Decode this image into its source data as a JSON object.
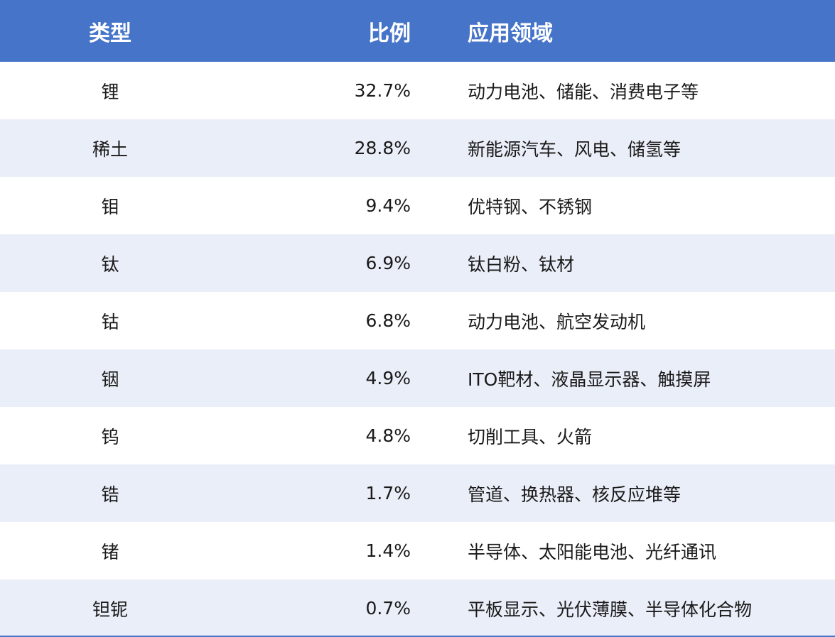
{
  "table": {
    "headers": {
      "type": "类型",
      "ratio": "比例",
      "application": "应用领域"
    },
    "rows": [
      {
        "type": "锂",
        "ratio": "32.7%",
        "application": "动力电池、储能、消费电子等"
      },
      {
        "type": "稀土",
        "ratio": "28.8%",
        "application": "新能源汽车、风电、储氢等"
      },
      {
        "type": "钼",
        "ratio": "9.4%",
        "application": "优特钢、不锈钢"
      },
      {
        "type": "钛",
        "ratio": "6.9%",
        "application": "钛白粉、钛材"
      },
      {
        "type": "钴",
        "ratio": "6.8%",
        "application": "动力电池、航空发动机"
      },
      {
        "type": "铟",
        "ratio": "4.9%",
        "application": "ITO靶材、液晶显示器、触摸屏"
      },
      {
        "type": "钨",
        "ratio": "4.8%",
        "application": "切削工具、火箭"
      },
      {
        "type": "锆",
        "ratio": "1.7%",
        "application": "管道、换热器、核反应堆等"
      },
      {
        "type": "锗",
        "ratio": "1.4%",
        "application": "半导体、太阳能电池、光纤通讯"
      },
      {
        "type": "钽铌",
        "ratio": "0.7%",
        "application": "平板显示、光伏薄膜、半导体化合物"
      }
    ]
  },
  "colors": {
    "header_bg": "#4674c9",
    "stripe_bg": "#eaeef8",
    "header_text": "#ffffff"
  }
}
